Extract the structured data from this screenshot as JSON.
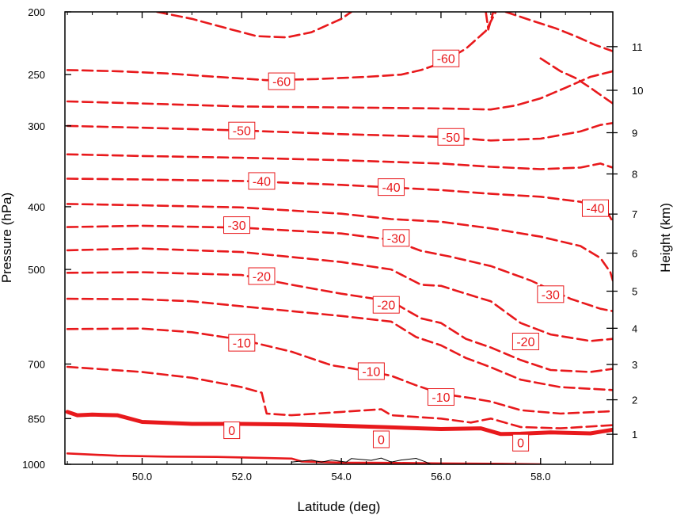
{
  "chart_data": {
    "type": "contour",
    "xlabel": "Latitude (deg)",
    "ylabel": "Pressure (hPa)",
    "y2label": "Height (km)",
    "xlim": [
      48.45,
      59.45
    ],
    "ylim": [
      1000,
      200
    ],
    "y_scale": "log",
    "x_ticks": [
      "50.0",
      "52.0",
      "54.0",
      "56.0",
      "58.0"
    ],
    "y_ticks": [
      "200",
      "250",
      "300",
      "400",
      "500",
      "700",
      "850",
      "1000"
    ],
    "y2_ticks": [
      "1",
      "2",
      "3",
      "4",
      "5",
      "6",
      "7",
      "8",
      "9",
      "10",
      "11"
    ],
    "contour_color": "#e8191c",
    "zero_style": "thick solid; negative values dashed",
    "contour_labels": [
      {
        "text": "-60",
        "lat": 52.8,
        "p": 256
      },
      {
        "text": "-60",
        "lat": 56.1,
        "p": 236
      },
      {
        "text": "-50",
        "lat": 52.0,
        "p": 305
      },
      {
        "text": "-50",
        "lat": 56.2,
        "p": 312
      },
      {
        "text": "-40",
        "lat": 52.4,
        "p": 365
      },
      {
        "text": "-40",
        "lat": 55.0,
        "p": 373
      },
      {
        "text": "-40",
        "lat": 59.1,
        "p": 402
      },
      {
        "text": "-30",
        "lat": 51.9,
        "p": 427
      },
      {
        "text": "-30",
        "lat": 55.1,
        "p": 447
      },
      {
        "text": "-30",
        "lat": 58.2,
        "p": 546
      },
      {
        "text": "-20",
        "lat": 52.4,
        "p": 512
      },
      {
        "text": "-20",
        "lat": 54.9,
        "p": 567
      },
      {
        "text": "-20",
        "lat": 57.7,
        "p": 646
      },
      {
        "text": "-10",
        "lat": 52.0,
        "p": 649
      },
      {
        "text": "-10",
        "lat": 54.6,
        "p": 718
      },
      {
        "text": "-10",
        "lat": 56.0,
        "p": 787
      },
      {
        "text": "0",
        "lat": 51.8,
        "p": 886
      },
      {
        "text": "0",
        "lat": 54.8,
        "p": 915
      },
      {
        "text": "0",
        "lat": 57.6,
        "p": 926
      }
    ],
    "contours": [
      {
        "level": -60,
        "points": [
          [
            48.5,
            246
          ],
          [
            49.5,
            247
          ],
          [
            50.5,
            249
          ],
          [
            51.5,
            252
          ],
          [
            52.5,
            255
          ],
          [
            53.5,
            254
          ],
          [
            54.5,
            252
          ],
          [
            55.2,
            250
          ],
          [
            55.6,
            246
          ],
          [
            56.0,
            240
          ],
          [
            56.5,
            228
          ],
          [
            56.9,
            214
          ],
          [
            57.1,
            200
          ]
        ]
      },
      {
        "level": -60,
        "points": [
          [
            50.3,
            200
          ],
          [
            51.0,
            205
          ],
          [
            51.7,
            212
          ],
          [
            52.3,
            218
          ],
          [
            52.9,
            219
          ],
          [
            53.4,
            215
          ],
          [
            54.0,
            205
          ],
          [
            54.2,
            200
          ]
        ]
      },
      {
        "level": -60,
        "points": [
          [
            57.3,
            200
          ],
          [
            57.8,
            206
          ],
          [
            58.3,
            212
          ],
          [
            58.7,
            218
          ],
          [
            59.1,
            225
          ],
          [
            59.45,
            230
          ]
        ]
      },
      {
        "level": -60,
        "points": [
          [
            56.9,
            200
          ],
          [
            56.95,
            213
          ],
          [
            57.05,
            200
          ]
        ]
      },
      {
        "level": -60,
        "points": [
          [
            58.0,
            236
          ],
          [
            58.4,
            247
          ],
          [
            58.7,
            253
          ],
          [
            59.0,
            262
          ],
          [
            59.3,
            272
          ],
          [
            59.45,
            277
          ]
        ]
      },
      {
        "level": -50,
        "points": [
          [
            48.5,
            275
          ],
          [
            50.0,
            277
          ],
          [
            52.0,
            280
          ],
          [
            54.0,
            281
          ],
          [
            56.0,
            282
          ],
          [
            57.0,
            283
          ],
          [
            57.5,
            279
          ],
          [
            58.0,
            272
          ],
          [
            58.5,
            262
          ],
          [
            59.0,
            252
          ],
          [
            59.45,
            247
          ]
        ]
      },
      {
        "level": -50,
        "points": [
          [
            48.5,
            300
          ],
          [
            50.0,
            302
          ],
          [
            52.0,
            305
          ],
          [
            54.0,
            309
          ],
          [
            56.0,
            312
          ],
          [
            57.0,
            316
          ],
          [
            58.0,
            314
          ],
          [
            58.8,
            306
          ],
          [
            59.2,
            299
          ],
          [
            59.45,
            297
          ]
        ]
      },
      {
        "level": -40,
        "points": [
          [
            48.5,
            332
          ],
          [
            50.0,
            334
          ],
          [
            52.0,
            336
          ],
          [
            54.0,
            339
          ],
          [
            56.0,
            343
          ],
          [
            57.0,
            347
          ],
          [
            58.0,
            350
          ],
          [
            58.8,
            348
          ],
          [
            59.2,
            343
          ],
          [
            59.45,
            348
          ]
        ]
      },
      {
        "level": -40,
        "points": [
          [
            48.5,
            362
          ],
          [
            50.0,
            363
          ],
          [
            52.0,
            365
          ],
          [
            54.0,
            370
          ],
          [
            56.0,
            377
          ],
          [
            57.0,
            382
          ],
          [
            58.0,
            386
          ],
          [
            58.8,
            393
          ],
          [
            59.3,
            403
          ],
          [
            59.45,
            422
          ]
        ]
      },
      {
        "level": -30,
        "points": [
          [
            48.5,
            396
          ],
          [
            50.0,
            398
          ],
          [
            52.0,
            401
          ],
          [
            54.0,
            410
          ],
          [
            55.0,
            418
          ],
          [
            56.0,
            422
          ],
          [
            57.0,
            432
          ],
          [
            58.0,
            445
          ],
          [
            58.8,
            460
          ],
          [
            59.2,
            480
          ],
          [
            59.4,
            505
          ],
          [
            59.45,
            520
          ]
        ]
      },
      {
        "level": -30,
        "points": [
          [
            48.5,
            430
          ],
          [
            50.0,
            428
          ],
          [
            52.0,
            431
          ],
          [
            54.0,
            440
          ],
          [
            55.0,
            450
          ],
          [
            55.6,
            468
          ],
          [
            56.2,
            478
          ],
          [
            57.0,
            494
          ],
          [
            57.8,
            520
          ],
          [
            58.6,
            555
          ],
          [
            59.2,
            575
          ],
          [
            59.45,
            580
          ]
        ]
      },
      {
        "level": -20,
        "points": [
          [
            48.5,
            467
          ],
          [
            50.0,
            464
          ],
          [
            52.0,
            470
          ],
          [
            54.0,
            487
          ],
          [
            55.0,
            500
          ],
          [
            55.6,
            528
          ],
          [
            56.0,
            530
          ],
          [
            56.5,
            545
          ],
          [
            57.0,
            560
          ],
          [
            57.6,
            605
          ],
          [
            58.2,
            630
          ],
          [
            59.0,
            645
          ],
          [
            59.45,
            640
          ]
        ]
      },
      {
        "level": -20,
        "points": [
          [
            48.5,
            506
          ],
          [
            50.0,
            505
          ],
          [
            52.0,
            510
          ],
          [
            53.0,
            528
          ],
          [
            54.0,
            545
          ],
          [
            55.0,
            560
          ],
          [
            55.6,
            595
          ],
          [
            56.0,
            605
          ],
          [
            56.5,
            640
          ],
          [
            57.0,
            660
          ],
          [
            57.6,
            690
          ],
          [
            58.2,
            715
          ],
          [
            59.0,
            720
          ],
          [
            59.45,
            712
          ]
        ]
      },
      {
        "level": -10,
        "points": [
          [
            48.5,
            555
          ],
          [
            50.0,
            556
          ],
          [
            51.0,
            560
          ],
          [
            52.0,
            570
          ],
          [
            53.0,
            580
          ],
          [
            54.0,
            590
          ],
          [
            55.0,
            602
          ],
          [
            55.5,
            636
          ],
          [
            56.0,
            655
          ],
          [
            56.5,
            685
          ],
          [
            57.0,
            708
          ],
          [
            57.6,
            740
          ],
          [
            58.4,
            760
          ],
          [
            59.45,
            768
          ]
        ]
      },
      {
        "level": -10,
        "points": [
          [
            48.5,
            618
          ],
          [
            50.0,
            617
          ],
          [
            51.0,
            625
          ],
          [
            52.0,
            642
          ],
          [
            53.0,
            670
          ],
          [
            53.8,
            703
          ],
          [
            54.5,
            717
          ],
          [
            55.0,
            730
          ],
          [
            55.5,
            755
          ],
          [
            56.0,
            778
          ],
          [
            56.6,
            790
          ],
          [
            57.0,
            800
          ],
          [
            57.6,
            825
          ],
          [
            58.4,
            835
          ],
          [
            59.45,
            828
          ]
        ]
      },
      {
        "level": -10,
        "points": [
          [
            48.5,
            707
          ],
          [
            50.0,
            720
          ],
          [
            51.0,
            735
          ],
          [
            52.0,
            760
          ],
          [
            52.4,
            775
          ],
          [
            52.5,
            835
          ],
          [
            53.0,
            840
          ],
          [
            54.0,
            830
          ],
          [
            54.8,
            822
          ],
          [
            55.0,
            840
          ],
          [
            55.5,
            845
          ],
          [
            56.0,
            850
          ],
          [
            56.6,
            862
          ],
          [
            57.0,
            850
          ],
          [
            57.6,
            876
          ],
          [
            58.4,
            880
          ],
          [
            59.45,
            870
          ]
        ]
      },
      {
        "level": 0,
        "points": [
          [
            48.5,
            830
          ],
          [
            48.7,
            840
          ],
          [
            49.0,
            838
          ],
          [
            49.5,
            840
          ],
          [
            50.0,
            860
          ],
          [
            51.0,
            866
          ],
          [
            52.0,
            866
          ],
          [
            53.0,
            868
          ],
          [
            54.0,
            872
          ],
          [
            55.0,
            877
          ],
          [
            56.0,
            882
          ],
          [
            56.8,
            880
          ],
          [
            57.2,
            898
          ],
          [
            57.6,
            897
          ],
          [
            58.2,
            893
          ],
          [
            59.0,
            896
          ],
          [
            59.45,
            884
          ]
        ]
      },
      {
        "level": 0,
        "points": [
          [
            48.5,
            962
          ],
          [
            49.5,
            970
          ],
          [
            50.5,
            973
          ],
          [
            51.5,
            974
          ],
          [
            52.5,
            978
          ],
          [
            53.0,
            980
          ],
          [
            53.2,
            990
          ],
          [
            54.0,
            994
          ],
          [
            55.0,
            995
          ],
          [
            56.0,
            997
          ],
          [
            57.0,
            998
          ],
          [
            58.0,
            1000
          ]
        ]
      }
    ]
  }
}
